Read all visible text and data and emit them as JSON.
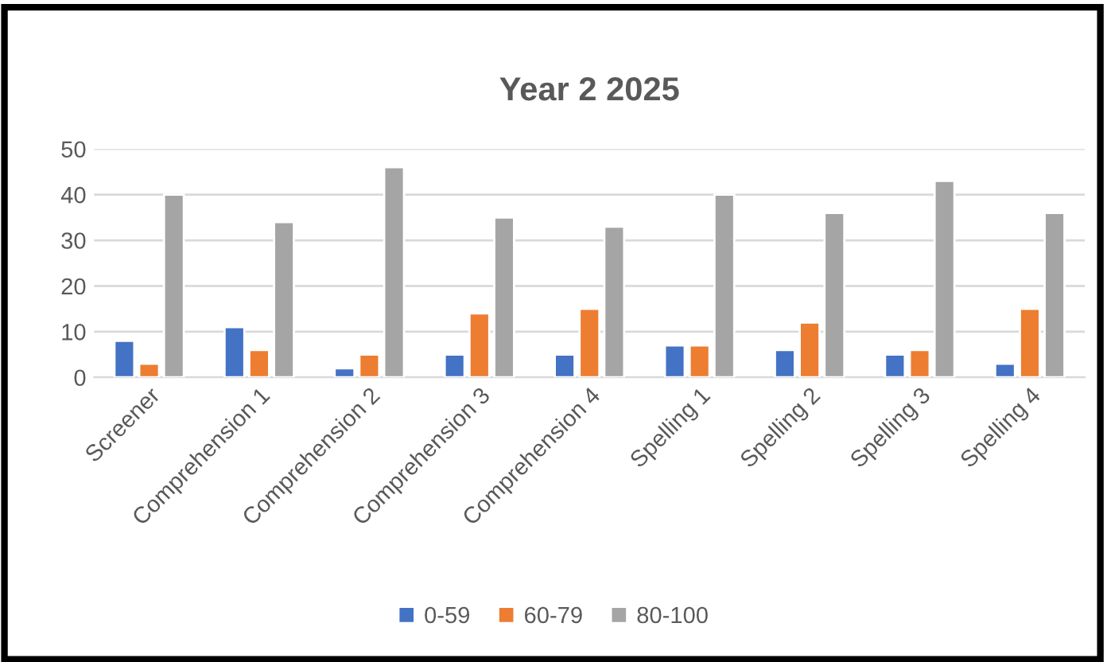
{
  "chart_data": {
    "type": "bar",
    "title": "Year 2 2025",
    "categories": [
      "Screener",
      "Comprehension 1",
      "Comprehension 2",
      "Comprehension 3",
      "Comprehension 4",
      "Spelling 1",
      "Spelling 2",
      "Spelling 3",
      "Spelling 4"
    ],
    "series": [
      {
        "name": "0-59",
        "color": "#4472c4",
        "values": [
          8,
          11,
          2,
          5,
          5,
          7,
          6,
          5,
          3
        ]
      },
      {
        "name": "60-79",
        "color": "#ed7d31",
        "values": [
          3,
          6,
          5,
          14,
          15,
          7,
          12,
          6,
          15
        ]
      },
      {
        "name": "80-100",
        "color": "#a5a5a5",
        "values": [
          40,
          34,
          46,
          35,
          33,
          40,
          36,
          43,
          36
        ]
      }
    ],
    "ylim": [
      0,
      50
    ],
    "yticks": [
      0,
      10,
      20,
      30,
      40,
      50
    ],
    "grid": "y",
    "legend": "bottom"
  }
}
